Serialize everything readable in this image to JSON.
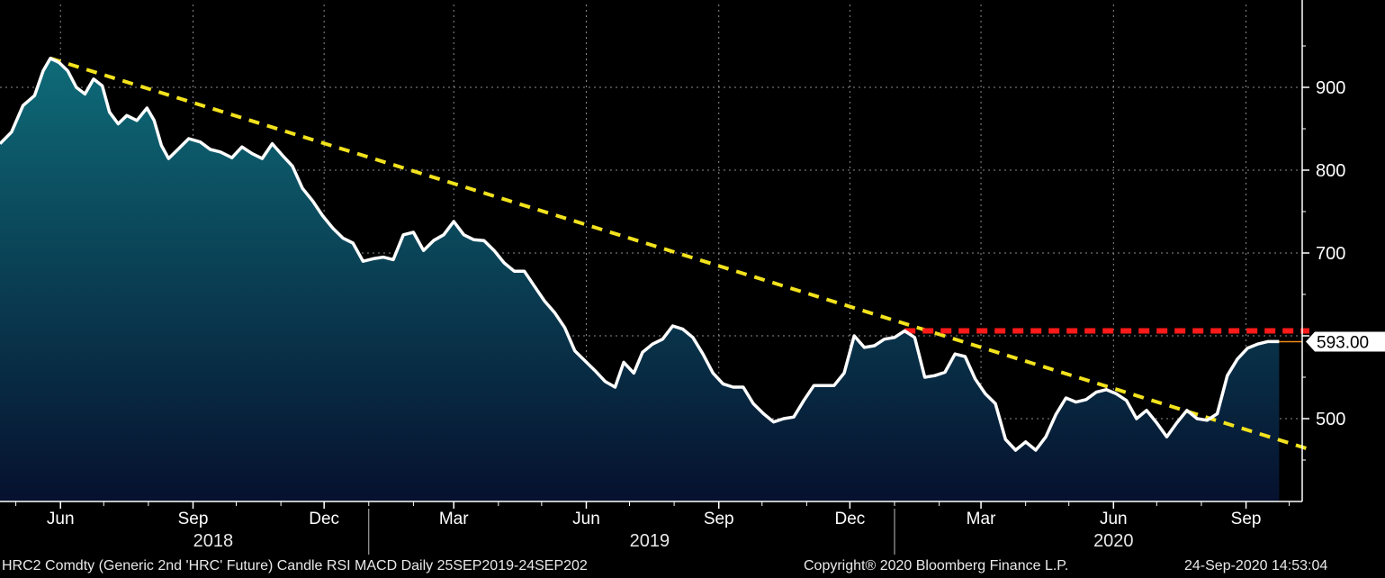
{
  "footer": {
    "security": "HRC2 Comdty (Generic 2nd 'HRC' Future) Candle RSI MACD  Daily 25SEP2019-24SEP202",
    "copyright": "Copyright® 2020 Bloomberg Finance L.P.",
    "timestamp": "24-Sep-2020 14:53:04"
  },
  "colors": {
    "background": "#000000",
    "price_line": "#ffffff",
    "area_top": "#0e6b78",
    "area_bottom": "#06112e",
    "trendline": "#f2e21d",
    "resistance": "#ff1a1a",
    "last_price_line": "#f08a1a",
    "grid": "#8c8c8c"
  },
  "chart_data": {
    "type": "area",
    "x_axis": {
      "ticks": [
        {
          "date": "2018-06-01",
          "label": "Jun"
        },
        {
          "date": "2018-09-01",
          "label": "Sep"
        },
        {
          "date": "2018-12-01",
          "label": "Dec"
        },
        {
          "date": "2019-03-01",
          "label": "Mar"
        },
        {
          "date": "2019-06-01",
          "label": "Jun"
        },
        {
          "date": "2019-09-01",
          "label": "Sep"
        },
        {
          "date": "2019-12-01",
          "label": "Dec"
        },
        {
          "date": "2020-03-01",
          "label": "Mar"
        },
        {
          "date": "2020-06-01",
          "label": "Jun"
        },
        {
          "date": "2020-09-01",
          "label": "Sep"
        }
      ],
      "years": [
        {
          "label": "2018",
          "date": "2018-09-15"
        },
        {
          "label": "2019",
          "date": "2019-07-15"
        },
        {
          "label": "2020",
          "date": "2020-06-01"
        }
      ],
      "year_separators": [
        "2019-01-01",
        "2020-01-01"
      ]
    },
    "y_axis": {
      "ticks": [
        500,
        600,
        700,
        800,
        900
      ],
      "tick_labels": [
        "500",
        "700",
        "800",
        "900"
      ],
      "range": [
        400,
        1000
      ],
      "grid": true
    },
    "last_value_label": "593.00",
    "last_value": 593,
    "series": [
      {
        "points": [
          [
            "2018-04-20",
            832
          ],
          [
            "2018-04-28",
            846
          ],
          [
            "2018-05-06",
            878
          ],
          [
            "2018-05-14",
            890
          ],
          [
            "2018-05-20",
            920
          ],
          [
            "2018-05-25",
            935
          ],
          [
            "2018-05-31",
            930
          ],
          [
            "2018-06-06",
            920
          ],
          [
            "2018-06-12",
            900
          ],
          [
            "2018-06-18",
            892
          ],
          [
            "2018-06-24",
            910
          ],
          [
            "2018-06-30",
            902
          ],
          [
            "2018-07-05",
            870
          ],
          [
            "2018-07-11",
            856
          ],
          [
            "2018-07-17",
            866
          ],
          [
            "2018-07-24",
            860
          ],
          [
            "2018-07-31",
            875
          ],
          [
            "2018-08-05",
            860
          ],
          [
            "2018-08-10",
            830
          ],
          [
            "2018-08-15",
            814
          ],
          [
            "2018-08-22",
            826
          ],
          [
            "2018-08-29",
            838
          ],
          [
            "2018-09-06",
            834
          ],
          [
            "2018-09-13",
            825
          ],
          [
            "2018-09-20",
            822
          ],
          [
            "2018-09-28",
            815
          ],
          [
            "2018-10-05",
            828
          ],
          [
            "2018-10-12",
            820
          ],
          [
            "2018-10-19",
            814
          ],
          [
            "2018-10-26",
            832
          ],
          [
            "2018-11-02",
            818
          ],
          [
            "2018-11-09",
            805
          ],
          [
            "2018-11-16",
            778
          ],
          [
            "2018-11-23",
            763
          ],
          [
            "2018-11-30",
            745
          ],
          [
            "2018-12-07",
            730
          ],
          [
            "2018-12-14",
            718
          ],
          [
            "2018-12-21",
            712
          ],
          [
            "2018-12-28",
            690
          ],
          [
            "2019-01-04",
            693
          ],
          [
            "2019-01-11",
            695
          ],
          [
            "2019-01-18",
            692
          ],
          [
            "2019-01-25",
            722
          ],
          [
            "2019-02-01",
            725
          ],
          [
            "2019-02-08",
            703
          ],
          [
            "2019-02-15",
            715
          ],
          [
            "2019-02-22",
            722
          ],
          [
            "2019-03-01",
            738
          ],
          [
            "2019-03-08",
            722
          ],
          [
            "2019-03-15",
            716
          ],
          [
            "2019-03-22",
            715
          ],
          [
            "2019-03-29",
            703
          ],
          [
            "2019-04-05",
            688
          ],
          [
            "2019-04-12",
            678
          ],
          [
            "2019-04-19",
            678
          ],
          [
            "2019-04-26",
            660
          ],
          [
            "2019-05-03",
            642
          ],
          [
            "2019-05-10",
            628
          ],
          [
            "2019-05-17",
            610
          ],
          [
            "2019-05-24",
            582
          ],
          [
            "2019-05-31",
            570
          ],
          [
            "2019-06-07",
            558
          ],
          [
            "2019-06-14",
            545
          ],
          [
            "2019-06-21",
            538
          ],
          [
            "2019-06-27",
            568
          ],
          [
            "2019-07-04",
            555
          ],
          [
            "2019-07-10",
            580
          ],
          [
            "2019-07-17",
            590
          ],
          [
            "2019-07-24",
            596
          ],
          [
            "2019-07-31",
            612
          ],
          [
            "2019-08-07",
            608
          ],
          [
            "2019-08-14",
            598
          ],
          [
            "2019-08-21",
            578
          ],
          [
            "2019-08-28",
            555
          ],
          [
            "2019-09-04",
            542
          ],
          [
            "2019-09-11",
            538
          ],
          [
            "2019-09-18",
            538
          ],
          [
            "2019-09-25",
            518
          ],
          [
            "2019-10-02",
            506
          ],
          [
            "2019-10-09",
            496
          ],
          [
            "2019-10-16",
            500
          ],
          [
            "2019-10-23",
            502
          ],
          [
            "2019-10-30",
            522
          ],
          [
            "2019-11-06",
            540
          ],
          [
            "2019-11-13",
            540
          ],
          [
            "2019-11-20",
            540
          ],
          [
            "2019-11-27",
            555
          ],
          [
            "2019-12-04",
            600
          ],
          [
            "2019-12-11",
            586
          ],
          [
            "2019-12-18",
            588
          ],
          [
            "2019-12-25",
            596
          ],
          [
            "2020-01-01",
            598
          ],
          [
            "2020-01-08",
            606
          ],
          [
            "2020-01-15",
            598
          ],
          [
            "2020-01-22",
            550
          ],
          [
            "2020-01-29",
            552
          ],
          [
            "2020-02-05",
            556
          ],
          [
            "2020-02-12",
            578
          ],
          [
            "2020-02-19",
            575
          ],
          [
            "2020-02-26",
            548
          ],
          [
            "2020-03-04",
            530
          ],
          [
            "2020-03-11",
            518
          ],
          [
            "2020-03-18",
            475
          ],
          [
            "2020-03-25",
            462
          ],
          [
            "2020-04-01",
            472
          ],
          [
            "2020-04-08",
            462
          ],
          [
            "2020-04-15",
            478
          ],
          [
            "2020-04-22",
            505
          ],
          [
            "2020-04-29",
            525
          ],
          [
            "2020-05-06",
            520
          ],
          [
            "2020-05-13",
            523
          ],
          [
            "2020-05-20",
            532
          ],
          [
            "2020-05-27",
            535
          ],
          [
            "2020-06-03",
            530
          ],
          [
            "2020-06-10",
            522
          ],
          [
            "2020-06-17",
            500
          ],
          [
            "2020-06-24",
            510
          ],
          [
            "2020-07-01",
            495
          ],
          [
            "2020-07-08",
            478
          ],
          [
            "2020-07-15",
            495
          ],
          [
            "2020-07-22",
            510
          ],
          [
            "2020-07-29",
            500
          ],
          [
            "2020-08-05",
            498
          ],
          [
            "2020-08-12",
            506
          ],
          [
            "2020-08-19",
            552
          ],
          [
            "2020-08-26",
            572
          ],
          [
            "2020-09-02",
            585
          ],
          [
            "2020-09-09",
            590
          ],
          [
            "2020-09-16",
            593
          ],
          [
            "2020-09-24",
            593
          ]
        ]
      }
    ],
    "annotations": [
      {
        "type": "trendline",
        "style": "dashed",
        "color": "#f2e21d",
        "from": [
          "2018-05-25",
          935
        ],
        "to": [
          "2020-10-15",
          463
        ]
      },
      {
        "type": "horizontal",
        "style": "dashed",
        "color": "#ff1a1a",
        "from": [
          "2020-01-08",
          606
        ],
        "to": [
          "2020-10-15",
          606
        ]
      }
    ]
  }
}
